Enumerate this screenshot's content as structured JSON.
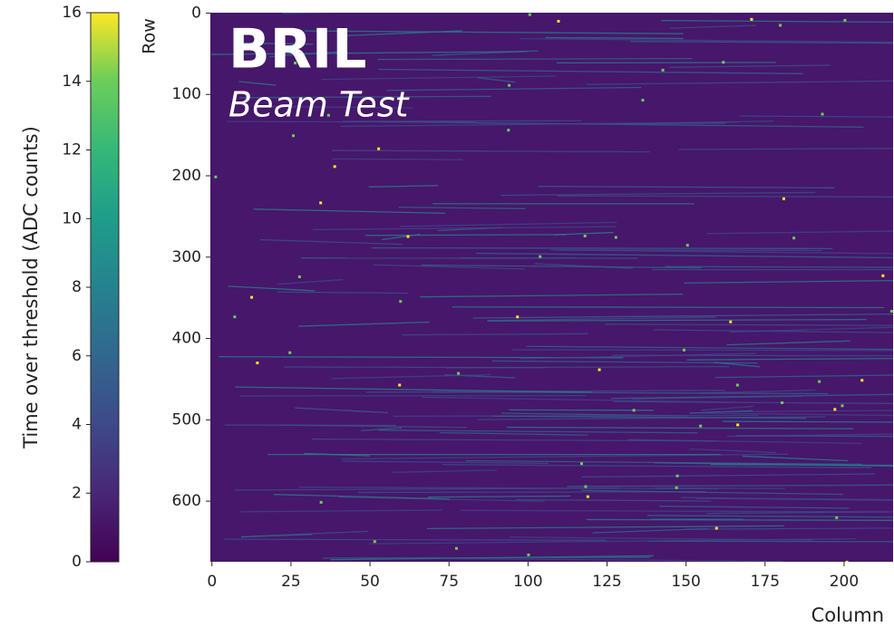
{
  "chart_data": {
    "type": "heatmap",
    "title": "BRIL",
    "subtitle": "Beam Test",
    "xlabel": "Column",
    "ylabel": "Row",
    "colorbar_label": "Time over threshold (ADC counts)",
    "colormap": "viridis",
    "clim": [
      0,
      16
    ],
    "cticks": [
      0,
      2,
      4,
      6,
      8,
      10,
      12,
      14,
      16
    ],
    "xlim": [
      -0.5,
      215.5
    ],
    "xticks": [
      0,
      25,
      50,
      75,
      100,
      125,
      150,
      175,
      200
    ],
    "ylim": [
      674.5,
      -0.5
    ],
    "yticks": [
      0,
      100,
      200,
      300,
      400,
      500,
      600
    ]
  }
}
